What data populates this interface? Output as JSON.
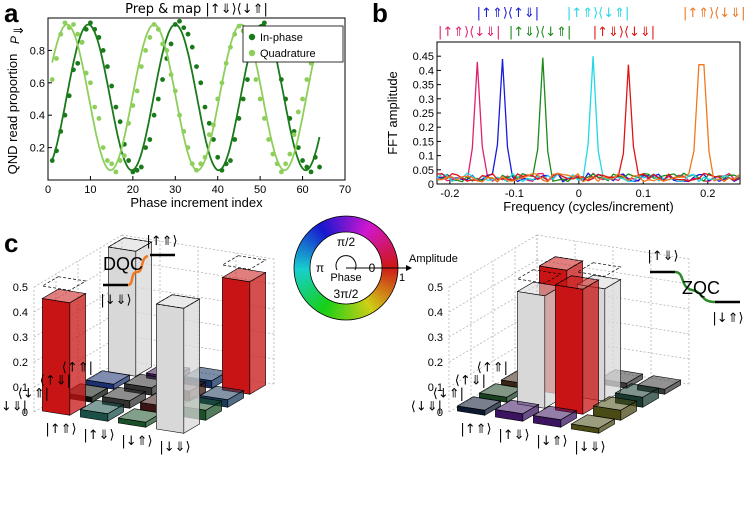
{
  "panels": {
    "a": "a",
    "b": "b",
    "c": "c"
  },
  "chart_data": [
    {
      "type": "scatter",
      "title": "Prep & map |↑⇓⟩⟨↓⇑|",
      "xlabel": "Phase increment index",
      "ylabel": "QND read proportion",
      "ylabel_symbol": "P",
      "ylabel_sub": "⇓",
      "xlim": [
        0,
        70
      ],
      "ylim": [
        0,
        1
      ],
      "xticks": [
        0,
        10,
        20,
        30,
        40,
        50,
        60,
        70
      ],
      "yticks": [
        0.2,
        0.4,
        0.6,
        0.8
      ],
      "legend_position": "top-right",
      "series": [
        {
          "name": "In-phase",
          "color": "#1a7a1a",
          "period": 20.5,
          "phase": 9.5,
          "x": [
            1,
            2,
            3,
            4,
            5,
            6,
            7,
            8,
            9,
            10,
            11,
            12,
            13,
            14,
            15,
            16,
            17,
            18,
            19,
            20,
            21,
            22,
            23,
            24,
            25,
            26,
            27,
            28,
            29,
            30,
            31,
            32,
            33,
            34,
            35,
            36,
            37,
            38,
            39,
            40,
            41,
            42,
            43,
            44,
            45,
            46,
            47,
            48,
            49,
            50,
            51,
            52,
            53,
            54,
            55,
            56,
            57,
            58,
            59,
            60,
            61,
            62,
            63,
            64
          ],
          "y": [
            0.12,
            0.18,
            0.3,
            0.4,
            0.52,
            0.68,
            0.72,
            0.85,
            0.93,
            0.97,
            0.93,
            0.88,
            0.8,
            0.7,
            0.58,
            0.45,
            0.36,
            0.22,
            0.12,
            0.05,
            0.06,
            0.08,
            0.2,
            0.25,
            0.4,
            0.5,
            0.62,
            0.75,
            0.84,
            0.96,
            0.98,
            0.94,
            0.9,
            0.82,
            0.7,
            0.6,
            0.45,
            0.35,
            0.25,
            0.14,
            0.06,
            0.1,
            0.12,
            0.25,
            0.38,
            0.5,
            0.62,
            0.78,
            0.86,
            0.92,
            0.97,
            0.92,
            0.85,
            0.76,
            0.62,
            0.5,
            0.38,
            0.3,
            0.2,
            0.12,
            0.08,
            0.05,
            0.14,
            0.08
          ]
        },
        {
          "name": "Quadrature",
          "color": "#8ecf5c",
          "period": 20.5,
          "phase": 4.5,
          "x": [
            1,
            2,
            3,
            4,
            5,
            6,
            7,
            8,
            9,
            10,
            11,
            12,
            13,
            14,
            15,
            16,
            17,
            18,
            19,
            20,
            21,
            22,
            23,
            24,
            25,
            26,
            27,
            28,
            29,
            30,
            31,
            32,
            33,
            34,
            35,
            36,
            37,
            38,
            39,
            40,
            41,
            42,
            43,
            44,
            45,
            46,
            47,
            48,
            49,
            50,
            51,
            52,
            53,
            54,
            55,
            56,
            57,
            58,
            59,
            60,
            61,
            62,
            63,
            64
          ],
          "y": [
            0.62,
            0.75,
            0.9,
            0.97,
            0.94,
            0.96,
            0.9,
            0.85,
            0.66,
            0.6,
            0.45,
            0.38,
            0.2,
            0.12,
            0.1,
            0.05,
            0.12,
            0.15,
            0.35,
            0.46,
            0.55,
            0.7,
            0.8,
            0.88,
            0.96,
            0.93,
            0.84,
            0.8,
            0.65,
            0.55,
            0.4,
            0.3,
            0.2,
            0.1,
            0.06,
            0.1,
            0.14,
            0.28,
            0.34,
            0.5,
            0.6,
            0.72,
            0.82,
            0.9,
            0.95,
            0.92,
            0.85,
            0.76,
            0.62,
            0.5,
            0.38,
            0.25,
            0.16,
            0.1,
            0.05,
            0.1,
            0.16,
            0.28,
            0.42,
            0.5,
            0.62,
            0.72,
            0.8,
            0.88
          ]
        }
      ]
    },
    {
      "type": "line",
      "xlabel": "Frequency (cycles/increment)",
      "ylabel": "FFT amplitude",
      "xlim": [
        -0.22,
        0.25
      ],
      "ylim": [
        0,
        0.5
      ],
      "xticks": [
        -0.2,
        -0.1,
        0,
        0.1,
        0.2
      ],
      "xtick_labels": [
        "-0.2",
        "-0.1",
        "0",
        "0.1",
        "0.2"
      ],
      "yticks": [
        0,
        0.05,
        0.1,
        0.15,
        0.2,
        0.25,
        0.3,
        0.35,
        0.4,
        0.45
      ],
      "ytick_labels": [
        "0",
        "0.05",
        "0.1",
        "0.15",
        "0.2",
        "0.25",
        "0.3",
        "0.35",
        "0.4",
        "0.45"
      ],
      "series": [
        {
          "label": "|↑⇑⟩⟨↓⇓|",
          "color": "#e0206e",
          "peak_x": -0.16,
          "peak_y": 0.43,
          "label_x": -0.17,
          "label_row": 2
        },
        {
          "label": "|↑⇑⟩⟨↑⇓|",
          "color": "#1a1adc",
          "peak_x": -0.12,
          "peak_y": 0.44,
          "label_x": -0.11,
          "label_row": 1
        },
        {
          "label": "|↑⇓⟩⟨↓⇑|",
          "color": "#1a8a1a",
          "peak_x": -0.055,
          "peak_y": 0.445,
          "label_x": -0.06,
          "label_row": 2
        },
        {
          "label": "|↑⇑⟩⟨↓⇑|",
          "color": "#22d8e6",
          "peak_x": 0.025,
          "peak_y": 0.45,
          "label_x": 0.03,
          "label_row": 1
        },
        {
          "label": "|↑⇓⟩⟨↓⇓|",
          "color": "#e01414",
          "peak_x": 0.075,
          "peak_y": 0.42,
          "label_x": 0.07,
          "label_row": 2
        },
        {
          "label": "|↑⇑⟩⟨↓⇓|",
          "color": "#f07820",
          "peak_x": 0.19,
          "peak_y": 0.42,
          "label_x": 0.21,
          "label_row": 1
        }
      ]
    },
    {
      "type": "bar3d",
      "name": "DQC",
      "zticks": [
        0,
        0.1,
        0.2,
        0.3,
        0.4,
        0.5
      ],
      "zlim": [
        0,
        0.5
      ],
      "energy_levels": {
        "top": "|↑⇑⟩",
        "bottom": "|↓⇓⟩",
        "label": "DQC",
        "wire_color": "#f07820"
      },
      "row_labels": [
        "⟨↑⇑|",
        "⟨↑⇓|",
        "⟨↓⇑|",
        "⟨↓⇓|"
      ],
      "col_labels": [
        "|↑⇑⟩",
        "|↑⇓⟩",
        "|↓⇑⟩",
        "|↓⇓⟩"
      ],
      "matrix": [
        [
          0.5,
          0.02,
          0.03,
          0.45
        ],
        [
          0.02,
          0.03,
          0.04,
          0.03
        ],
        [
          0.02,
          0.03,
          0.03,
          0.04
        ],
        [
          0.45,
          0.03,
          0.02,
          0.5
        ]
      ],
      "colors": [
        [
          "#d8d8d8",
          "#3a1a50",
          "#103060",
          "#c81414"
        ],
        [
          "#1a3070",
          "#303030",
          "#3a1414",
          "#1a3a5a"
        ],
        [
          "#081008",
          "#303030",
          "#3a1414",
          "#1a5028"
        ],
        [
          "#c81414",
          "#1a5048",
          "#1a5028",
          "#d8d8d8"
        ]
      ]
    },
    {
      "type": "bar3d",
      "name": "ZQC",
      "zticks": [
        0,
        0.1,
        0.2,
        0.3,
        0.4,
        0.5
      ],
      "zlim": [
        0,
        0.5
      ],
      "energy_levels": {
        "top": "|↑⇓⟩",
        "bottom": "|↓⇑⟩",
        "label": "ZQC",
        "wire_color": "#2a8a2a"
      },
      "row_labels": [
        "⟨↑⇑|",
        "⟨↑⇓|",
        "⟨↓⇑|",
        "⟨↓⇓|"
      ],
      "col_labels": [
        "|↑⇑⟩",
        "|↑⇓⟩",
        "|↓⇑⟩",
        "|↓⇓⟩"
      ],
      "matrix": [
        [
          0.02,
          0.02,
          0.02,
          0.02
        ],
        [
          0.02,
          0.5,
          0.45,
          0.04
        ],
        [
          0.02,
          0.45,
          0.5,
          0.04
        ],
        [
          0.02,
          0.03,
          0.03,
          0.02
        ]
      ],
      "colors": [
        [
          "#3a3a3a",
          "#3a1420",
          "#3a3a3a",
          "#383838"
        ],
        [
          "#3a2414",
          "#c81414",
          "#d8d8d8",
          "#1a3a30"
        ],
        [
          "#1a4020",
          "#d8d8d8",
          "#c81414",
          "#4a4a14"
        ],
        [
          "#0a1830",
          "#3a1460",
          "#3a1460",
          "#4a4a14"
        ]
      ]
    }
  ],
  "phase_wheel": {
    "top": "π/2",
    "left": "π",
    "right": "0",
    "bottom": "3π/2",
    "center": "Phase",
    "axis_label": "Amplitude",
    "axis_value": "1"
  }
}
